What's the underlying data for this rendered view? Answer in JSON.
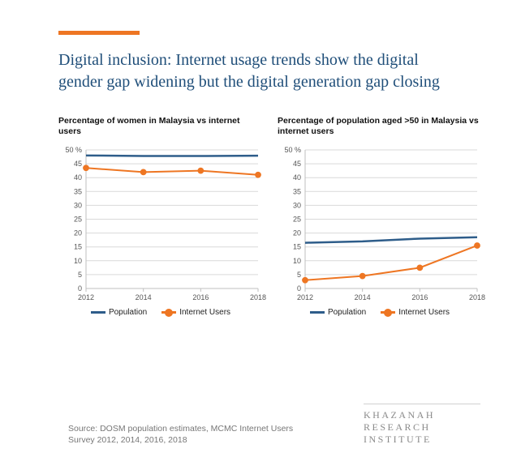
{
  "accent_color": "#ee7623",
  "title_color": "#1f4e79",
  "title": "Digital inclusion: Internet usage trends show the digital gender gap widening but the digital generation gap closing",
  "x_categories": [
    2012,
    2014,
    2016,
    2018
  ],
  "y_axis": {
    "min": 0,
    "max": 50,
    "step": 5,
    "top_label": "50 %"
  },
  "grid_color": "#d9d9d9",
  "axis_color": "#bfbfbf",
  "series_colors": {
    "population": "#2e5d8a",
    "internet": "#ee7623"
  },
  "series_style": {
    "population": {
      "line_width": 2.5,
      "marker": false
    },
    "internet": {
      "line_width": 2.0,
      "marker": true,
      "marker_radius": 3.4
    }
  },
  "charts": [
    {
      "id": "women",
      "title": "Percentage of women in Malaysia vs internet users",
      "series": {
        "population": [
          48,
          47.8,
          47.8,
          47.9
        ],
        "internet": [
          43.5,
          42.0,
          42.5,
          41.0
        ]
      }
    },
    {
      "id": "age50",
      "title": "Percentage of population aged >50 in Malaysia vs internet users",
      "series": {
        "population": [
          16.5,
          17.0,
          18.0,
          18.5
        ],
        "internet": [
          3.0,
          4.5,
          7.5,
          15.5
        ]
      }
    }
  ],
  "legend": {
    "population": "Population",
    "internet": "Internet Users"
  },
  "source_text": "Source: DOSM population estimates, MCMC Internet Users Survey 2012, 2014, 2016, 2018",
  "brand_lines": [
    "KHAZANAH",
    "RESEARCH",
    "INSTITUTE"
  ]
}
